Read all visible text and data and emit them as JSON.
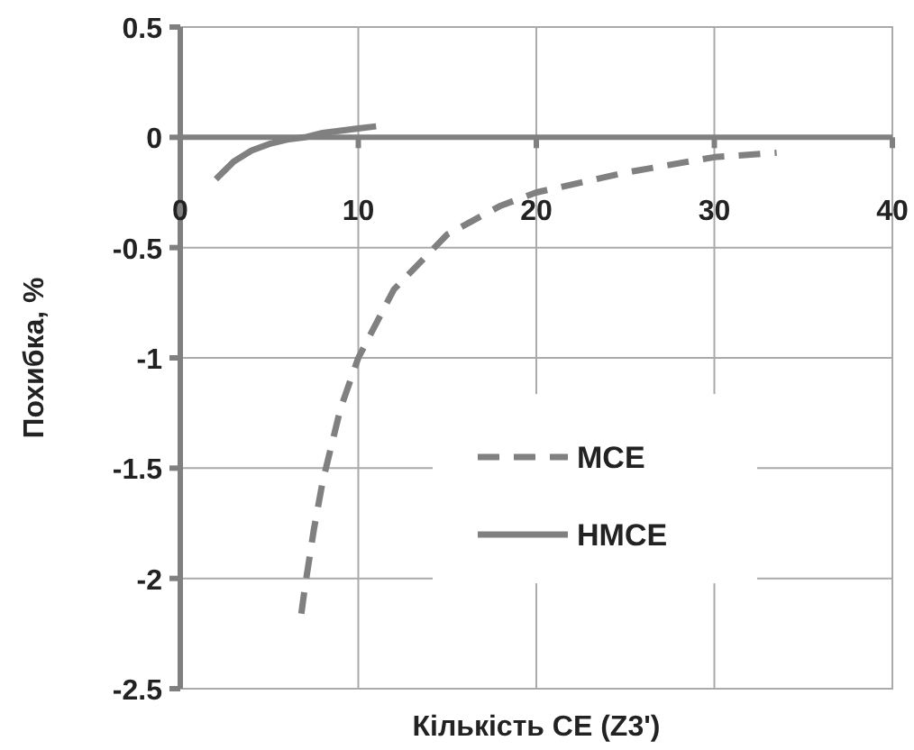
{
  "chart_data": {
    "type": "line",
    "xlabel": "Кількість CE (Z3')",
    "ylabel": "Похибка, %",
    "xlim": [
      0,
      40
    ],
    "xticks": [
      0,
      10,
      20,
      30,
      40
    ],
    "ylim": [
      -2.5,
      0.5
    ],
    "yticks": [
      -2.5,
      -2,
      -1.5,
      -1,
      -0.5,
      0,
      0.5
    ],
    "grid": true,
    "legend": "right",
    "marker": "none",
    "series": [
      {
        "name": "MCE",
        "color": "#808080",
        "line_style": "dashed",
        "x": [
          6.8,
          7,
          7.5,
          8,
          9,
          10,
          12,
          15,
          18,
          20,
          25,
          30,
          33.5
        ],
        "values": [
          -2.16,
          -2.04,
          -1.78,
          -1.56,
          -1.23,
          -1,
          -0.69,
          -0.44,
          -0.31,
          -0.25,
          -0.16,
          -0.09,
          -0.07
        ]
      },
      {
        "name": "HMCE",
        "color": "#808080",
        "line_style": "solid",
        "x": [
          2,
          3,
          4,
          5,
          6,
          7,
          8,
          9,
          10,
          11
        ],
        "values": [
          -0.19,
          -0.11,
          -0.06,
          -0.03,
          -0.01,
          0,
          0.02,
          0.03,
          0.04,
          0.05
        ]
      }
    ]
  }
}
